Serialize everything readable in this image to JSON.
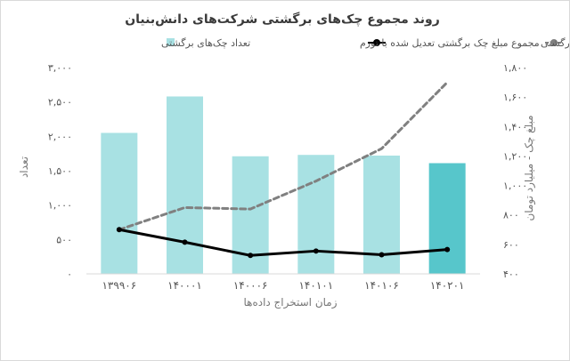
{
  "chart_data": {
    "type": "bar",
    "title": "روند مجموع چک‌های برگشتی شرکت‌های دانش‌بنیان",
    "xlabel": "زمان استخراج داده‌ها",
    "ylabel_left": "تعداد",
    "ylabel_right": "مبلغ چک - میلیارد تومان",
    "categories": [
      "۱۳۹۹۰۶",
      "۱۴۰۰۰۱",
      "۱۴۰۰۰۶",
      "۱۴۰۱۰۱",
      "۱۴۰۱۰۶",
      "۱۴۰۲۰۱"
    ],
    "series": [
      {
        "name": "تعداد چک‌های برگشتی",
        "kind": "bar",
        "axis": "left",
        "color": "#a8e1e3",
        "highlight_color": "#57c6cb",
        "values": [
          2050,
          2580,
          1710,
          1730,
          1720,
          1610
        ]
      },
      {
        "name": "مجموع مبلغ چک برگشتی",
        "kind": "line",
        "axis": "right",
        "color": "#808080",
        "dashed": true,
        "values": [
          700,
          850,
          840,
          1030,
          1250,
          1700
        ]
      },
      {
        "name": "مجموع مبلغ چک برگشتی تعدیل شده با تورم",
        "kind": "line",
        "axis": "right",
        "color": "#000000",
        "dashed": false,
        "values": [
          700,
          615,
          525,
          555,
          530,
          565
        ]
      }
    ],
    "yleft_ticks": [
      0,
      500,
      1000,
      1500,
      2000,
      2500,
      3000
    ],
    "yleft_tick_labels": [
      "۰",
      "۵۰۰",
      "۱,۰۰۰",
      "۱,۵۰۰",
      "۲,۰۰۰",
      "۲,۵۰۰",
      "۳,۰۰۰"
    ],
    "yleft_lim": [
      0,
      3000
    ],
    "yright_ticks": [
      400,
      600,
      800,
      1000,
      1200,
      1400,
      1600,
      1800
    ],
    "yright_tick_labels": [
      "۴۰۰",
      "۶۰۰",
      "۸۰۰",
      "۱,۰۰۰",
      "۱,۲۰۰",
      "۱,۴۰۰",
      "۱,۶۰۰",
      "۱,۸۰۰"
    ],
    "yright_lim": [
      400,
      1800
    ],
    "grid": false,
    "legend_position": "top"
  }
}
